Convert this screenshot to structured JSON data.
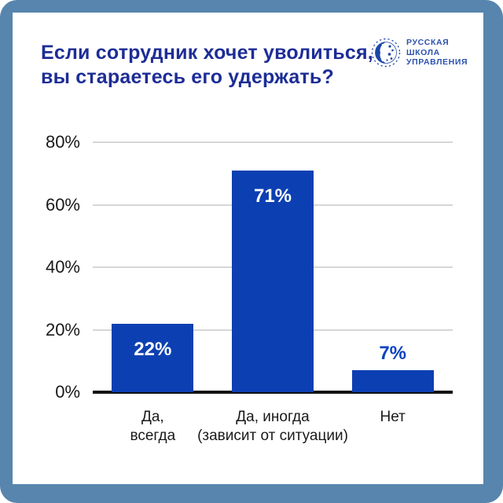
{
  "frame": {
    "outer_color": "#5785ad",
    "card_color": "#ffffff"
  },
  "header": {
    "title_line1": "Если сотрудник хочет уволиться,",
    "title_line2": "вы стараетесь его удержать?",
    "title_color": "#1d2d96",
    "logo": {
      "line1": "РУССКАЯ",
      "line2": "ШКОЛА",
      "line3": "УПРАВЛЕНИЯ",
      "color": "#2d52ad"
    }
  },
  "chart_data": {
    "type": "bar",
    "title": "Если сотрудник хочет уволиться, вы стараетесь его удержать?",
    "categories": [
      [
        "Да,",
        "всегда"
      ],
      [
        "Да, иногда",
        "(зависит от ситуации)"
      ],
      [
        "Нет"
      ]
    ],
    "values": [
      22,
      71,
      7
    ],
    "value_labels": [
      "22%",
      "71%",
      "7%"
    ],
    "label_placement": [
      "inside",
      "inside",
      "outside"
    ],
    "xlabel": "",
    "ylabel": "",
    "ylim": [
      0,
      80
    ],
    "ytick_values": [
      0,
      20,
      40,
      60,
      80
    ],
    "ytick_labels": [
      "0%",
      "20%",
      "40%",
      "60%",
      "80%"
    ],
    "grid": true,
    "legend": false,
    "bar_color": "#0c40b2",
    "grid_color": "#d6d6d6",
    "axis_color": "#111111",
    "value_inside_color": "#ffffff",
    "value_outside_color": "#0b42c0"
  }
}
